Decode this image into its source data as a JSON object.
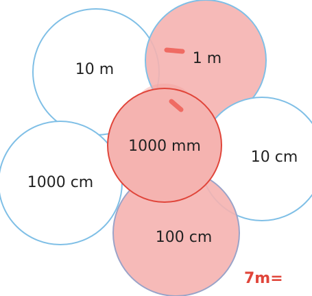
{
  "circles": [
    {
      "id": "circle-10-m",
      "label": "10 m",
      "color": "#7fbfe6",
      "fill": "#ffffff"
    },
    {
      "id": "circle-1-m",
      "label": "1 m",
      "color": "#f5b3b0",
      "fill": "#f5b3b0"
    },
    {
      "id": "circle-1000-cm",
      "label": "1000 cm",
      "color": "#7fbfe6",
      "fill": "#ffffff"
    },
    {
      "id": "circle-10-cm",
      "label": "10 cm",
      "color": "#7fbfe6",
      "fill": "#ffffff"
    },
    {
      "id": "circle-100-cm",
      "label": "100 cm",
      "color": "#9aa3c8",
      "fill": "#f5b3b0"
    },
    {
      "id": "circle-1000-mm",
      "label": "1000 mm",
      "color": "#e0453a",
      "fill": "#f5b3b0"
    }
  ],
  "handwriting": {
    "text": "7m=",
    "color": "#e0453a"
  }
}
